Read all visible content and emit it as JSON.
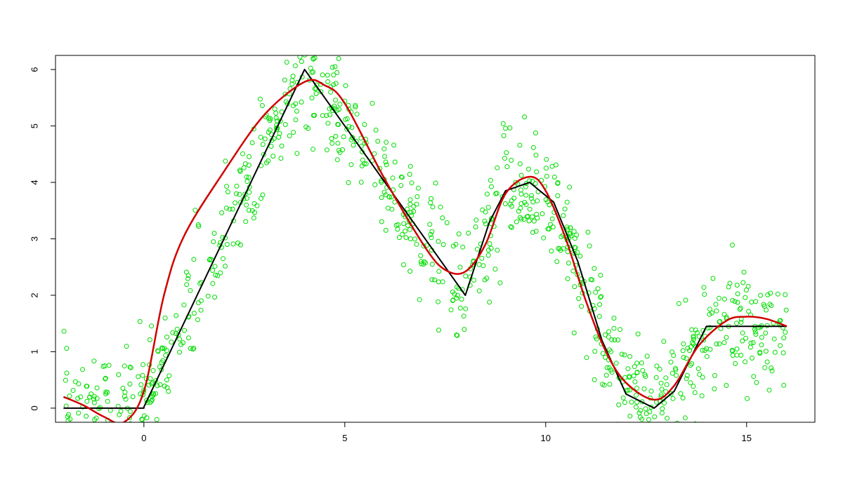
{
  "chart_data": {
    "type": "scatter",
    "title": "",
    "xlabel": "",
    "ylabel": "",
    "xlim": [
      -2.2,
      16.7
    ],
    "ylim": [
      -0.25,
      6.25
    ],
    "grid": false,
    "legend": "none",
    "x_ticks": [
      0,
      5,
      10,
      15
    ],
    "x_tick_labels": [
      "0",
      "5",
      "10",
      "15"
    ],
    "y_ticks": [
      0,
      1,
      2,
      3,
      4,
      5,
      6
    ],
    "y_tick_labels": [
      "0",
      "1",
      "2",
      "3",
      "4",
      "5",
      "6"
    ],
    "colors": {
      "points": "#00dd00",
      "true_function": "#000000",
      "smooth_fit": "#d00000",
      "axes": "#000000"
    },
    "series": [
      {
        "kind": "points",
        "marker": "open-circle",
        "x_range": [
          -2,
          16
        ],
        "count": 1000,
        "noise_sd": 0.5,
        "follows": "true_function"
      },
      {
        "kind": "line",
        "color": "#000000",
        "x": [
          -2,
          0,
          0,
          4,
          8,
          8.6,
          9,
          9.6,
          10.2,
          10.8,
          11.4,
          12,
          12.7,
          13.2,
          14,
          14,
          16
        ],
        "y": [
          0,
          0,
          0.02,
          6,
          2,
          3.3,
          3.85,
          4.0,
          3.65,
          2.6,
          1.2,
          0.25,
          0,
          0.3,
          1.45,
          1.45,
          1.45
        ]
      },
      {
        "kind": "line",
        "color": "#d00000",
        "x": [
          -2,
          -1.5,
          -1,
          -0.5,
          0,
          0.5,
          1,
          2,
          3,
          4,
          4.5,
          5,
          6,
          7,
          7.5,
          8,
          8.5,
          9,
          9.6,
          10,
          10.5,
          11,
          11.5,
          12,
          12.7,
          13.2,
          13.8,
          14.5,
          15,
          15.5,
          16
        ],
        "y": [
          0.2,
          0.05,
          -0.15,
          -0.25,
          0.3,
          2.0,
          3.05,
          4.2,
          5.2,
          5.78,
          5.72,
          5.4,
          4.05,
          2.85,
          2.45,
          2.42,
          2.9,
          3.8,
          4.1,
          3.85,
          3.0,
          1.9,
          1.0,
          0.45,
          0.15,
          0.4,
          1.1,
          1.55,
          1.62,
          1.58,
          1.45
        ]
      }
    ]
  }
}
